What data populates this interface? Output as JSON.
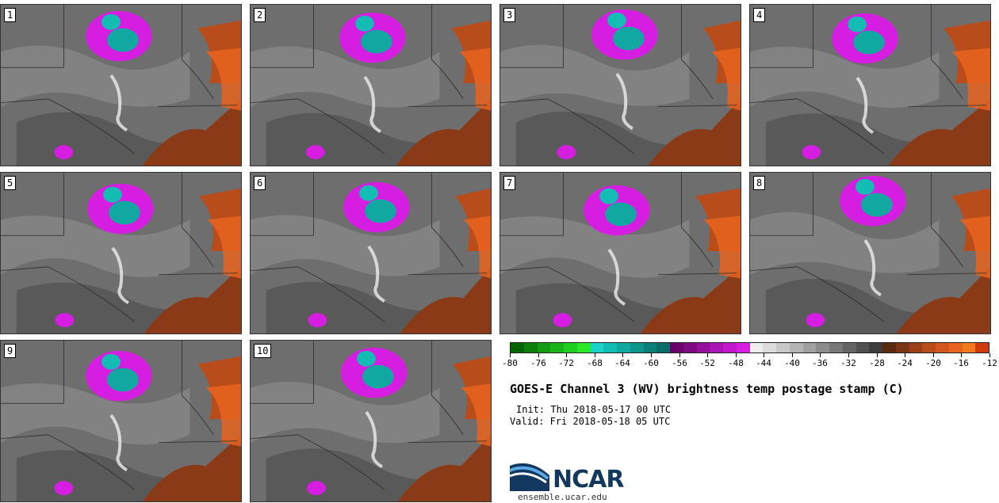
{
  "figure": {
    "title": "GOES-E Channel 3 (WV) brightness temp postage stamp (C)",
    "init": "Init: Thu 2018-05-17 00 UTC",
    "valid": "Valid: Fri 2018-05-18 05 UTC",
    "logo_text": "NCAR",
    "footer_url": "ensemble.ucar.edu"
  },
  "panels": [
    {
      "label": "1"
    },
    {
      "label": "2"
    },
    {
      "label": "3"
    },
    {
      "label": "4"
    },
    {
      "label": "5"
    },
    {
      "label": "6"
    },
    {
      "label": "7"
    },
    {
      "label": "8"
    },
    {
      "label": "9"
    },
    {
      "label": "10"
    }
  ],
  "colorbar": {
    "tick_labels": [
      "-80",
      "-76",
      "-72",
      "-68",
      "-64",
      "-60",
      "-56",
      "-52",
      "-48",
      "-44",
      "-40",
      "-36",
      "-32",
      "-28",
      "-24",
      "-20",
      "-16",
      "-12"
    ],
    "colors": [
      "#006400",
      "#0b7f0b",
      "#129a12",
      "#18b418",
      "#1ecf1e",
      "#28e828",
      "#1bd4c8",
      "#14bdb3",
      "#10a8a0",
      "#0c948d",
      "#0a8079",
      "#076d67",
      "#6a006a",
      "#7e0a82",
      "#94109a",
      "#aa14b2",
      "#c018ca",
      "#d61ee2",
      "#eeeeee",
      "#dcdcdc",
      "#c8c8c8",
      "#b4b4b4",
      "#a0a0a0",
      "#8c8c8c",
      "#787878",
      "#646464",
      "#505050",
      "#3c3c3c",
      "#5a2a10",
      "#7a3515",
      "#9a4018",
      "#b84c1b",
      "#d2561d",
      "#e8641e",
      "#f07a1c",
      "#d03a0c"
    ]
  }
}
